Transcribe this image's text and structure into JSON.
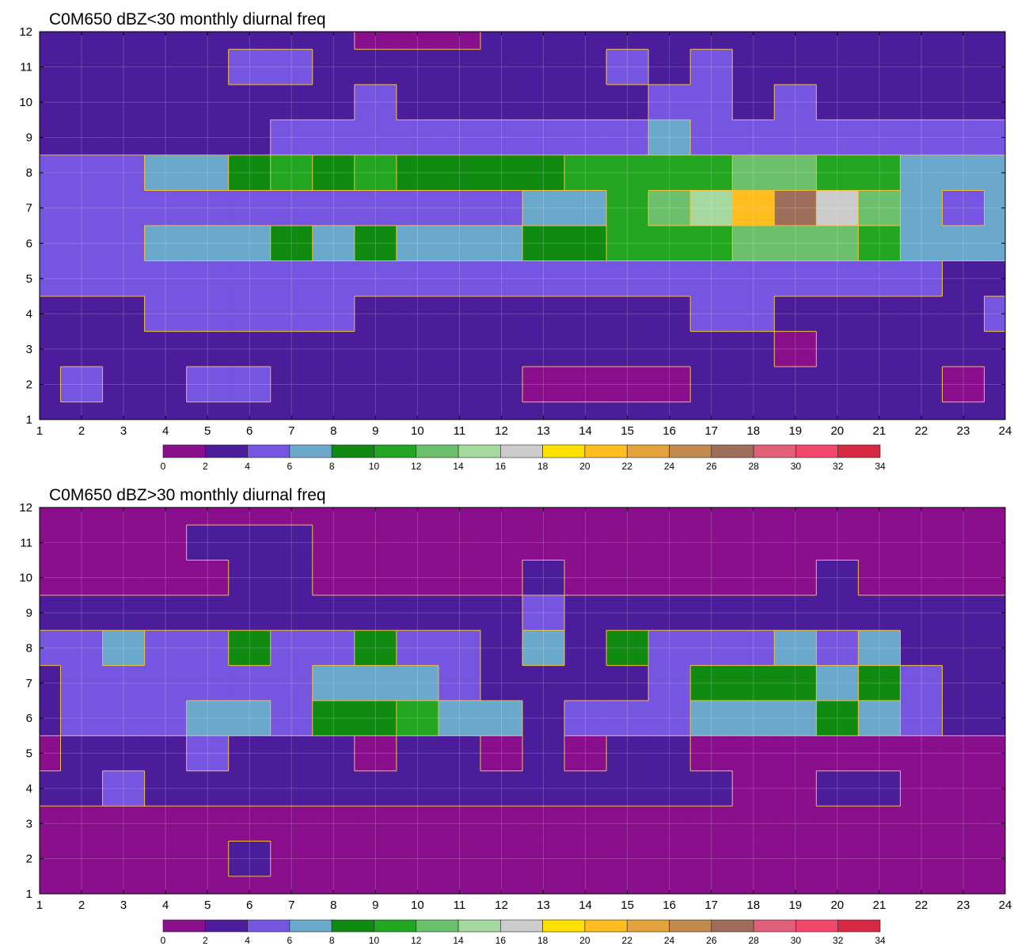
{
  "chart_data": [
    {
      "type": "heatmap",
      "title": "C0M650 dBZ<30 monthly diurnal freq",
      "x": [
        1,
        2,
        3,
        4,
        5,
        6,
        7,
        8,
        9,
        10,
        11,
        12,
        13,
        14,
        15,
        16,
        17,
        18,
        19,
        20,
        21,
        22,
        23,
        24
      ],
      "y": [
        1,
        2,
        3,
        4,
        5,
        6,
        7,
        8,
        9,
        10,
        11,
        12
      ],
      "xlim": [
        1,
        24
      ],
      "ylim": [
        1,
        12
      ],
      "x_ticks": [
        "1",
        "2",
        "3",
        "4",
        "5",
        "6",
        "7",
        "8",
        "9",
        "10",
        "11",
        "12",
        "13",
        "14",
        "15",
        "16",
        "17",
        "18",
        "19",
        "20",
        "21",
        "22",
        "23",
        "24"
      ],
      "y_ticks": [
        "1",
        "2",
        "3",
        "4",
        "5",
        "6",
        "7",
        "8",
        "9",
        "10",
        "11",
        "12"
      ],
      "grid": true,
      "contour_labels": true,
      "colorbar_ticks": [
        "0",
        "2",
        "4",
        "6",
        "8",
        "10",
        "12",
        "14",
        "16",
        "18",
        "20",
        "22",
        "24",
        "26",
        "28",
        "30",
        "32",
        "34"
      ],
      "z": [
        [
          3,
          3,
          3,
          2,
          3,
          2,
          3,
          3,
          3,
          3,
          3,
          2,
          2,
          2,
          2,
          2,
          2,
          2,
          3,
          3,
          3,
          3,
          3,
          3
        ],
        [
          3,
          4,
          3,
          3,
          4,
          4,
          3,
          3,
          3,
          3,
          3,
          2,
          1,
          1,
          1,
          1,
          2,
          2,
          3,
          3,
          3,
          3,
          1,
          3
        ],
        [
          3,
          3,
          3,
          3,
          3,
          3,
          3,
          3,
          3,
          3,
          3,
          2,
          2,
          3,
          3,
          3,
          3,
          2,
          1,
          3,
          3,
          3,
          3,
          3
        ],
        [
          3,
          3,
          3,
          5,
          4,
          5,
          5,
          4,
          3,
          3,
          3,
          2,
          2,
          3,
          3,
          3,
          4,
          4,
          3,
          3,
          3,
          3,
          3,
          4
        ],
        [
          5,
          5,
          5,
          4,
          5,
          5,
          5,
          5,
          4,
          4,
          5,
          5,
          4,
          5,
          5,
          5,
          5,
          5,
          5,
          5,
          5,
          5,
          3,
          3
        ],
        [
          5,
          5,
          5,
          7,
          7,
          7,
          9,
          7,
          9,
          7,
          7,
          7,
          9,
          9,
          11,
          11,
          11,
          13,
          13,
          12,
          10,
          7,
          7,
          7
        ],
        [
          5,
          5,
          5,
          5,
          5,
          5,
          5,
          5,
          5,
          5,
          4,
          5,
          7,
          7,
          11,
          13,
          15,
          21,
          27,
          17,
          13,
          7,
          5,
          7
        ],
        [
          5,
          5,
          5,
          7,
          7,
          9,
          10,
          9,
          11,
          9,
          9,
          9,
          9,
          11,
          11,
          11,
          11,
          13,
          13,
          11,
          11,
          7,
          7,
          7
        ],
        [
          3,
          3,
          3,
          3,
          3,
          3,
          5,
          5,
          5,
          5,
          5,
          5,
          5,
          5,
          5,
          7,
          5,
          5,
          5,
          5,
          5,
          5,
          5,
          5
        ],
        [
          3,
          3,
          3,
          3,
          3,
          3,
          3,
          3,
          5,
          3,
          3,
          3,
          3,
          3,
          3,
          5,
          5,
          3,
          5,
          3,
          3,
          3,
          3,
          3
        ],
        [
          3,
          3,
          3,
          3,
          3,
          5,
          5,
          3,
          3,
          3,
          3,
          3,
          3,
          3,
          5,
          3,
          5,
          3,
          3,
          3,
          3,
          3,
          3,
          3
        ],
        [
          3,
          3,
          3,
          3,
          3,
          3,
          3,
          3,
          1,
          1,
          1,
          3,
          3,
          3,
          3,
          3,
          3,
          3,
          3,
          3,
          3,
          3,
          3,
          3
        ]
      ]
    },
    {
      "type": "heatmap",
      "title": "C0M650 dBZ>30 monthly diurnal freq",
      "x": [
        1,
        2,
        3,
        4,
        5,
        6,
        7,
        8,
        9,
        10,
        11,
        12,
        13,
        14,
        15,
        16,
        17,
        18,
        19,
        20,
        21,
        22,
        23,
        24
      ],
      "y": [
        1,
        2,
        3,
        4,
        5,
        6,
        7,
        8,
        9,
        10,
        11,
        12
      ],
      "xlim": [
        1,
        24
      ],
      "ylim": [
        1,
        12
      ],
      "x_ticks": [
        "1",
        "2",
        "3",
        "4",
        "5",
        "6",
        "7",
        "8",
        "9",
        "10",
        "11",
        "12",
        "13",
        "14",
        "15",
        "16",
        "17",
        "18",
        "19",
        "20",
        "21",
        "22",
        "23",
        "24"
      ],
      "y_ticks": [
        "1",
        "2",
        "3",
        "4",
        "5",
        "6",
        "7",
        "8",
        "9",
        "10",
        "11",
        "12"
      ],
      "grid": true,
      "contour_labels": true,
      "colorbar_ticks": [
        "0",
        "2",
        "4",
        "6",
        "8",
        "10",
        "12",
        "14",
        "16",
        "18",
        "20",
        "22",
        "24",
        "26",
        "28",
        "30",
        "32",
        "34"
      ],
      "z": [
        [
          1,
          1,
          1,
          1,
          1,
          1,
          1,
          1,
          1,
          1,
          1,
          1,
          1,
          1,
          1,
          1,
          1,
          1,
          1,
          1,
          1,
          1,
          1,
          1
        ],
        [
          1,
          1,
          1,
          1,
          1,
          3,
          1,
          1,
          1,
          1,
          1,
          1,
          1,
          1,
          1,
          1,
          1,
          1,
          1,
          1,
          1,
          1,
          1,
          1
        ],
        [
          1,
          1,
          1,
          1,
          1,
          1,
          1,
          1,
          1,
          1,
          1,
          1,
          1,
          1,
          1,
          1,
          1,
          1,
          1,
          1,
          1,
          1,
          1,
          1
        ],
        [
          3,
          3,
          5,
          3,
          3,
          3,
          3,
          3,
          3,
          3,
          3,
          3,
          3,
          3,
          3,
          3,
          3,
          1,
          1,
          3,
          3,
          1,
          1,
          1
        ],
        [
          1,
          3,
          3,
          3,
          5,
          3,
          3,
          3,
          1,
          3,
          3,
          1,
          3,
          1,
          3,
          3,
          1,
          1,
          1,
          1,
          1,
          1,
          1,
          1
        ],
        [
          3,
          5,
          5,
          5,
          7,
          7,
          5,
          9,
          9,
          11,
          7,
          7,
          3,
          5,
          5,
          5,
          7,
          7,
          7,
          9,
          7,
          5,
          3,
          3
        ],
        [
          3,
          5,
          5,
          5,
          5,
          5,
          5,
          7,
          7,
          7,
          5,
          3,
          3,
          3,
          3,
          5,
          9,
          9,
          9,
          7,
          9,
          5,
          3,
          3
        ],
        [
          5,
          5,
          7,
          5,
          5,
          9,
          5,
          5,
          9,
          5,
          5,
          3,
          7,
          3,
          9,
          5,
          5,
          5,
          7,
          5,
          7,
          3,
          3,
          3
        ],
        [
          3,
          3,
          3,
          3,
          3,
          3,
          3,
          3,
          3,
          3,
          3,
          3,
          5,
          3,
          3,
          3,
          3,
          3,
          3,
          3,
          3,
          3,
          3,
          3
        ],
        [
          1,
          1,
          1,
          1,
          1,
          3,
          3,
          1,
          1,
          1,
          1,
          1,
          3,
          1,
          1,
          1,
          1,
          1,
          1,
          3,
          1,
          1,
          1,
          1
        ],
        [
          1,
          1,
          1,
          1,
          3,
          3,
          3,
          1,
          1,
          1,
          1,
          1,
          1,
          1,
          1,
          1,
          1,
          1,
          1,
          1,
          1,
          1,
          1,
          1
        ],
        [
          1,
          1,
          1,
          1,
          1,
          1,
          1,
          1,
          1,
          1,
          1,
          1,
          1,
          1,
          1,
          1,
          1,
          1,
          1,
          1,
          1,
          1,
          1,
          1
        ]
      ]
    }
  ],
  "palette": [
    "#8a0f8c",
    "#4b1d9b",
    "#7656e0",
    "#6aa8cc",
    "#118a11",
    "#22a622",
    "#6cc06c",
    "#a6d9a0",
    "#cccccc",
    "#ffe000",
    "#ffbd20",
    "#e4a23c",
    "#c38a50",
    "#9e6e5a",
    "#e06078",
    "#f2486c",
    "#d62a44"
  ],
  "contour_line_color": "#f2c13a"
}
